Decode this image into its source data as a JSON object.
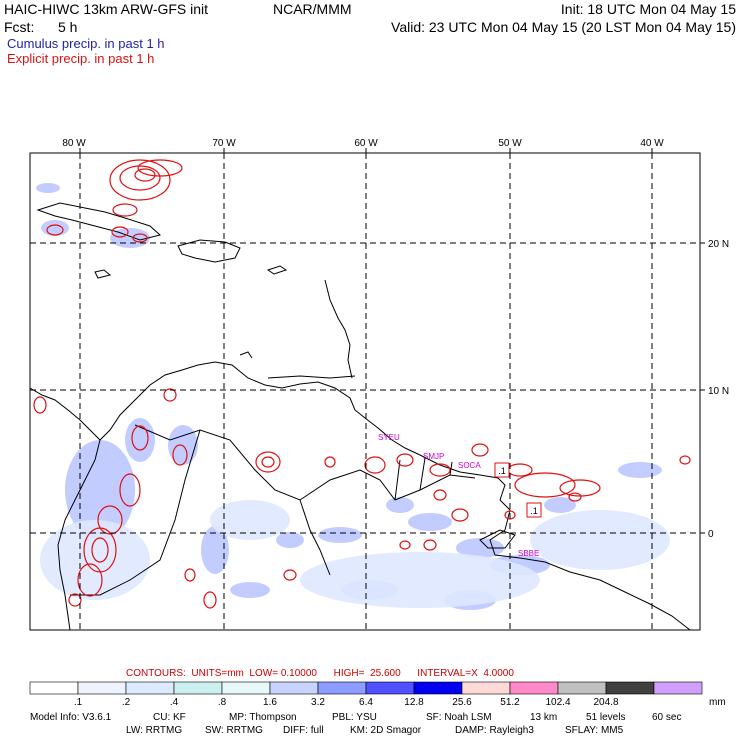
{
  "header": {
    "title": "HAIC-HIWC 13km ARW-GFS init",
    "source": "NCAR/MMM",
    "init": "Init: 18 UTC Mon 04 May 15",
    "fcst_label": "Fcst:",
    "fcst_value": "5 h",
    "valid": "Valid: 23 UTC Mon 04 May 15 (20 LST Mon 04 May 15)"
  },
  "legend": {
    "cumulus": "Cumulus precip. in past 1 h",
    "explicit": "Explicit precip. in past 1 h",
    "cumulus_color": "#2222aa",
    "explicit_color": "#dd1111"
  },
  "map": {
    "lon_labels": [
      "80 W",
      "70 W",
      "60 W",
      "50 W",
      "40 W"
    ],
    "lat_labels": [
      "20 N",
      "10 N",
      "0"
    ],
    "stations": [
      "SYEU",
      "SMJP",
      "SOCA",
      "SBBE"
    ],
    "markers": [
      ".1",
      ".1"
    ]
  },
  "contours_info": {
    "text": "CONTOURS:  UNITS=mm  LOW= 0.10000      HIGH=  25.600      INTERVAL=X  4.0000"
  },
  "colorbar": {
    "labels": [
      ".1",
      ".2",
      ".4",
      ".8",
      "1.6",
      "3.2",
      "6.4",
      "12.8",
      "25.6",
      "51.2",
      "102.4",
      "204.8"
    ],
    "units": "mm",
    "colors": [
      "#ffffff",
      "#eef4ff",
      "#ddeaff",
      "#ccf0f0",
      "#e8f8f8",
      "#c8d4ff",
      "#8c9cff",
      "#5050ff",
      "#0000f0",
      "#ffd8d8",
      "#ff88c8",
      "#c0c0c0",
      "#404040",
      "#d0a0ff"
    ]
  },
  "model_info": {
    "line1": [
      "Model Info: V3.6.1",
      "CU: KF",
      "MP: Thompson",
      "PBL: YSU",
      "SF: Noah LSM",
      "13 km",
      "51 levels",
      "60 sec"
    ],
    "line2": [
      "LW: RRTMG",
      "SW: RRTMG",
      "DIFF: full",
      "KM: 2D Smagor",
      "DAMP: Rayleigh3",
      "SFLAY: MM5"
    ]
  }
}
